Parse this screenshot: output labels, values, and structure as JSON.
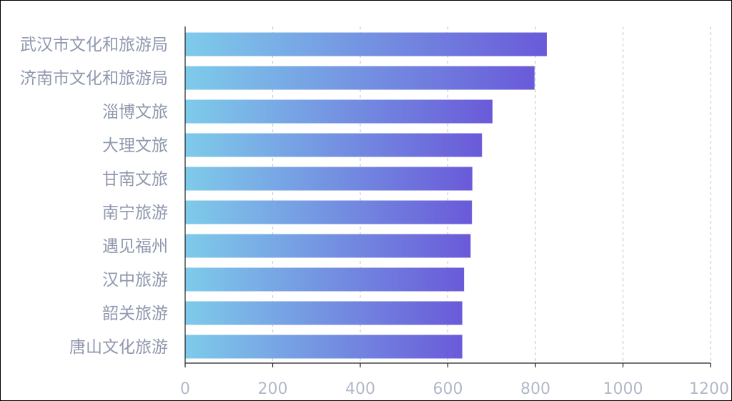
{
  "chart_data": {
    "type": "bar",
    "orientation": "horizontal",
    "categories": [
      "武汉市文化和旅游局",
      "济南市文化和旅游局",
      "淄博文旅",
      "大理文旅",
      "甘南文旅",
      "南宁旅游",
      "遇见福州",
      "汉中旅游",
      "韶关旅游",
      "唐山文化旅游"
    ],
    "values": [
      826,
      798,
      702,
      678,
      656,
      655,
      652,
      637,
      633,
      633
    ],
    "xlim": [
      0,
      1200
    ],
    "xticks": [
      "0",
      "200",
      "400",
      "600",
      "800",
      "1000",
      "1200"
    ],
    "title": "",
    "xlabel": "",
    "ylabel": "",
    "grid": "vertical dashed",
    "legend": "none",
    "colors": {
      "bar_start": "#7ecbea",
      "bar_end": "#6a5ad9",
      "grid": "#c8ccd4",
      "axis": "#222222",
      "category_text": "#8f98ad",
      "tick_text": "#b2b9c8"
    }
  }
}
